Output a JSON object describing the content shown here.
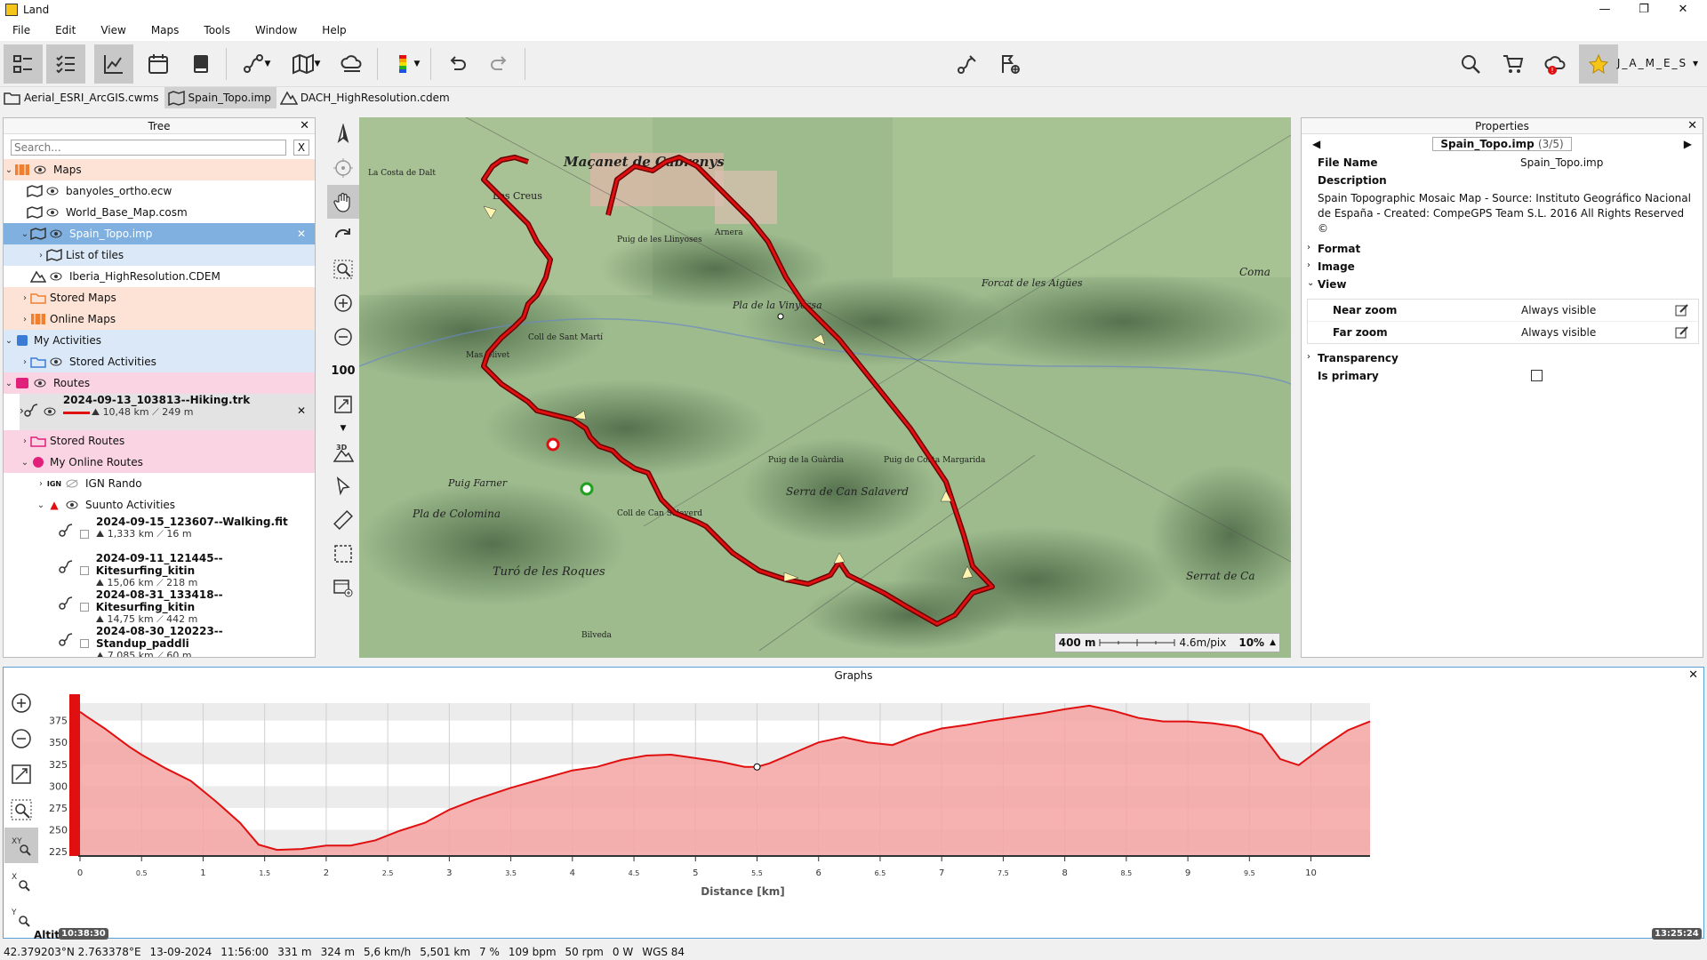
{
  "app": {
    "title": "Land"
  },
  "menu": [
    "File",
    "Edit",
    "View",
    "Maps",
    "Tools",
    "Window",
    "Help"
  ],
  "user": {
    "name": "J_A_M_E_S"
  },
  "doc_tabs": [
    {
      "label": "Aerial_ESRI_ArcGIS.cwms",
      "icon": "folder-icon"
    },
    {
      "label": "Spain_Topo.imp",
      "icon": "map-icon"
    },
    {
      "label": "DACH_HighResolution.cdem",
      "icon": "terrain-icon"
    }
  ],
  "tree": {
    "title": "Tree",
    "search_placeholder": "Search...",
    "clear": "X",
    "maps_label": "Maps",
    "items": {
      "banyoles": "banyoles_ortho.ecw",
      "world": "World_Base_Map.cosm",
      "spain": "Spain_Topo.imp",
      "tiles": "List of tiles",
      "iberia": "Iberia_HighResolution.CDEM",
      "stored_maps": "Stored Maps",
      "online_maps": "Online Maps",
      "my_activities": "My Activities",
      "stored_activities": "Stored Activities",
      "routes": "Routes",
      "stored_routes": "Stored Routes",
      "my_online_routes": "My Online Routes",
      "ign_rando": "IGN Rando",
      "suunto": "Suunto Activities"
    },
    "route": {
      "name": "2024-09-13_103813--Hiking.trk",
      "distance": "10,48 km",
      "climb": "249 m"
    },
    "activities": [
      {
        "name": "2024-09-15_123607--Walking.fit",
        "distance": "1,333 km",
        "climb": "16 m"
      },
      {
        "name": "2024-09-11_121445--Kitesurfing_kitin",
        "distance": "15,06 km",
        "climb": "218 m"
      },
      {
        "name": "2024-08-31_133418--Kitesurfing_kitin",
        "distance": "14,75 km",
        "climb": "442 m"
      },
      {
        "name": "2024-08-30_120223--Standup_paddli",
        "distance": "7,085 km",
        "climb": "60 m"
      }
    ]
  },
  "map": {
    "labels": [
      "Maçanet de Cabrenys",
      "Les Creus",
      "Puig de les Llinyoses",
      "Arnera",
      "Pla de la Vinyossa",
      "Forcat de les Aigües",
      "Coll de Sant Martí",
      "Puig Farner",
      "Pla de Colomina",
      "Serra de Can Salaverd",
      "Puig de la Guàrdia",
      "Puig de Costa Margarida",
      "Turó de les Roques",
      "Serrat de Ca",
      "Coma",
      "Bilveda",
      "La Costa de Dalt",
      "Mas Olivet",
      "Coll de Can Salaverd"
    ],
    "scale": {
      "distance": "400 m",
      "resolution": "4.6m/pix",
      "zoom": "10%"
    },
    "tool_label_3d": "3D",
    "tool_label_100": "100"
  },
  "properties": {
    "title": "Properties",
    "file": "Spain_Topo.imp",
    "counter": "(3/5)",
    "file_name_key": "File Name",
    "file_name_val": "Spain_Topo.imp",
    "description_key": "Description",
    "description_val": "Spain Topographic Mosaic Map - Source: Instituto Geográfico Nacional de España - Created: CompeGPS Team S.L. 2016 All Rights Reserved ©",
    "sections": {
      "format": "Format",
      "image": "Image",
      "view": "View",
      "transparency": "Transparency",
      "is_primary": "Is primary"
    },
    "near_zoom_key": "Near zoom",
    "near_zoom_val": "Always visible",
    "far_zoom_key": "Far zoom",
    "far_zoom_val": "Always visible"
  },
  "graph": {
    "title": "Graphs",
    "start_time": "10:38:30",
    "end_time": "13:25:24",
    "y_axis_short": "Altitu",
    "xlabel": "Distance [km]"
  },
  "chart_data": {
    "type": "area",
    "title": "Graphs",
    "xlabel": "Distance [km]",
    "ylabel": "Altitu",
    "xlim": [
      0,
      10.48
    ],
    "ylim": [
      220,
      395
    ],
    "x_ticks": [
      "0",
      "0.5",
      "1",
      "1.5",
      "2",
      "2.5",
      "3",
      "3.5",
      "4",
      "4.5",
      "5",
      "5.5",
      "6",
      "6.5",
      "7",
      "7.5",
      "8",
      "8.5",
      "9",
      "9.5",
      "10"
    ],
    "y_ticks": [
      "225",
      "250",
      "275",
      "300",
      "325",
      "350",
      "375"
    ],
    "grid": true,
    "color": "#e01010",
    "x": [
      0,
      0.05,
      0.2,
      0.4,
      0.5,
      0.7,
      0.9,
      1.1,
      1.3,
      1.45,
      1.6,
      1.8,
      2.0,
      2.2,
      2.4,
      2.6,
      2.8,
      3.0,
      3.2,
      3.5,
      3.8,
      4.0,
      4.2,
      4.4,
      4.6,
      4.8,
      5.0,
      5.2,
      5.4,
      5.5,
      5.6,
      5.8,
      6.0,
      6.2,
      6.4,
      6.6,
      6.8,
      7.0,
      7.2,
      7.4,
      7.6,
      7.8,
      8.0,
      8.2,
      8.4,
      8.6,
      8.8,
      9.0,
      9.2,
      9.4,
      9.6,
      9.75,
      9.9,
      10.1,
      10.3,
      10.48
    ],
    "y": [
      385,
      380,
      366,
      345,
      336,
      320,
      306,
      283,
      258,
      233,
      227,
      228,
      232,
      232,
      238,
      249,
      258,
      273,
      284,
      298,
      310,
      318,
      322,
      330,
      335,
      336,
      332,
      328,
      322,
      322,
      326,
      338,
      350,
      356,
      350,
      347,
      358,
      366,
      370,
      375,
      379,
      383,
      388,
      392,
      386,
      378,
      374,
      374,
      372,
      368,
      359,
      331,
      324,
      345,
      364,
      374
    ]
  },
  "status": [
    "42.379203°N 2.763378°E",
    "13-09-2024",
    "11:56:00",
    "331 m",
    "324 m",
    "5,6 km/h",
    "5,501 km",
    "7 %",
    "109 bpm",
    "50 rpm",
    "0 W",
    "WGS 84"
  ]
}
